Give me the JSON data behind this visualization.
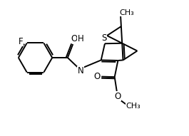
{
  "bg_color": "#ffffff",
  "bond_color": "#000000",
  "bond_lw": 1.4,
  "font_size": 8.5,
  "label_color": "#000000",
  "xlim": [
    0,
    10
  ],
  "ylim": [
    0,
    7.2
  ]
}
